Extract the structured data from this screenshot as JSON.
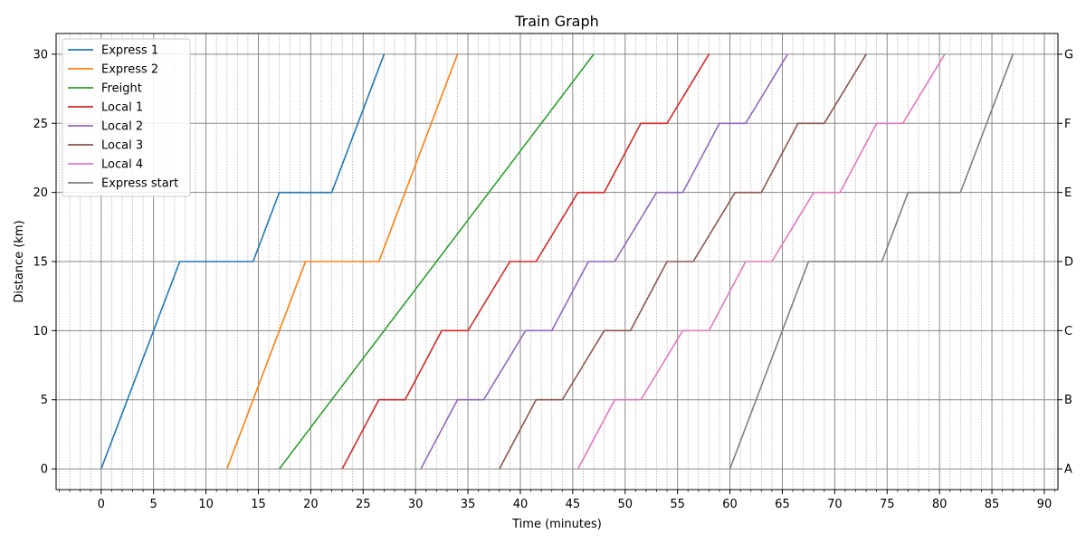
{
  "chart_data": {
    "type": "line",
    "title": "Train Graph",
    "xlabel": "Time (minutes)",
    "ylabel": "Distance (km)",
    "xlim": [
      -4.3,
      91.3
    ],
    "ylim": [
      -1.5,
      31.5
    ],
    "x_ticks": [
      0,
      5,
      10,
      15,
      20,
      25,
      30,
      35,
      40,
      45,
      50,
      55,
      60,
      65,
      70,
      75,
      80,
      85,
      90
    ],
    "y_ticks": [
      0,
      5,
      10,
      15,
      20,
      25,
      30
    ],
    "x_minor_step": 1,
    "grid": true,
    "legend_position": "top-left",
    "stations": [
      {
        "name": "A",
        "km": 0
      },
      {
        "name": "B",
        "km": 5
      },
      {
        "name": "C",
        "km": 10
      },
      {
        "name": "D",
        "km": 15
      },
      {
        "name": "E",
        "km": 20
      },
      {
        "name": "F",
        "km": 25
      },
      {
        "name": "G",
        "km": 30
      }
    ],
    "series": [
      {
        "name": "Express 1",
        "color": "#1f77b4",
        "x": [
          0,
          7.5,
          14.5,
          17,
          22,
          27
        ],
        "y": [
          0,
          15,
          15,
          20,
          20,
          30
        ]
      },
      {
        "name": "Express 2",
        "color": "#ff7f0e",
        "x": [
          12,
          19.5,
          26.5,
          34
        ],
        "y": [
          0,
          15,
          15,
          30
        ]
      },
      {
        "name": "Freight",
        "color": "#2ca02c",
        "x": [
          17,
          47
        ],
        "y": [
          0,
          30
        ]
      },
      {
        "name": "Local 1",
        "color": "#d62728",
        "x": [
          23,
          26.5,
          29,
          32.5,
          35,
          39,
          41.5,
          45.5,
          48,
          51.5,
          54,
          58
        ],
        "y": [
          0,
          5,
          5,
          10,
          10,
          15,
          15,
          20,
          20,
          25,
          25,
          30
        ]
      },
      {
        "name": "Local 2",
        "color": "#9467bd",
        "x": [
          30.5,
          34,
          36.5,
          40.5,
          43,
          46.5,
          49,
          53,
          55.5,
          59,
          61.5,
          65.5
        ],
        "y": [
          0,
          5,
          5,
          10,
          10,
          15,
          15,
          20,
          20,
          25,
          25,
          30
        ]
      },
      {
        "name": "Local 3",
        "color": "#8c564b",
        "x": [
          38,
          41.5,
          44,
          48,
          50.5,
          54,
          56.5,
          60.5,
          63,
          66.5,
          69,
          73
        ],
        "y": [
          0,
          5,
          5,
          10,
          10,
          15,
          15,
          20,
          20,
          25,
          25,
          30
        ]
      },
      {
        "name": "Local 4",
        "color": "#e377c2",
        "x": [
          45.5,
          49,
          51.5,
          55.5,
          58,
          61.5,
          64,
          68,
          70.5,
          74,
          76.5,
          80.5
        ],
        "y": [
          0,
          5,
          5,
          10,
          10,
          15,
          15,
          20,
          20,
          25,
          25,
          30
        ]
      },
      {
        "name": "Express start",
        "color": "#7f7f7f",
        "x": [
          60,
          67.5,
          74.5,
          77,
          82,
          87
        ],
        "y": [
          0,
          15,
          15,
          20,
          20,
          30
        ]
      }
    ]
  }
}
